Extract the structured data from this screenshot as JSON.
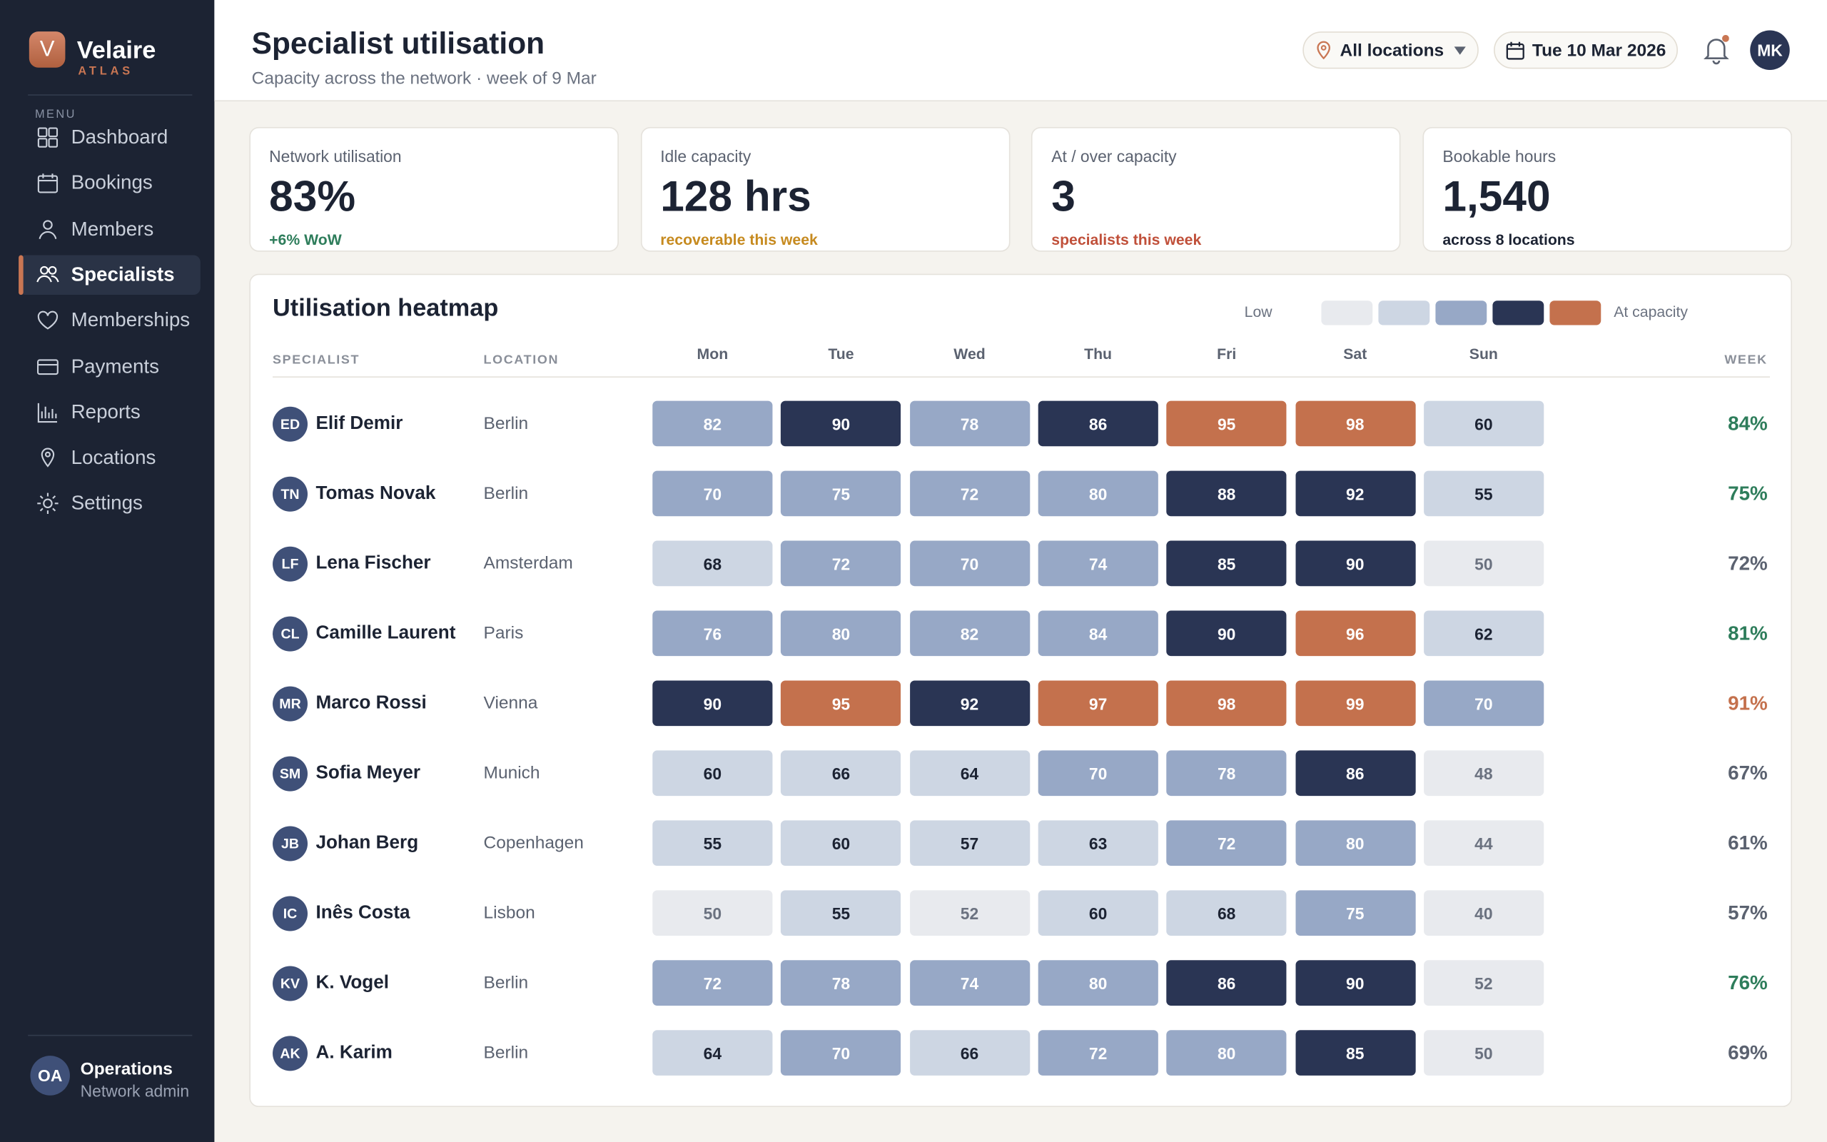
{
  "brand": {
    "initial": "V",
    "name": "Velaire",
    "sub": "ATLAS"
  },
  "nav": {
    "heading": "MENU",
    "items": [
      "Dashboard",
      "Bookings",
      "Members",
      "Specialists",
      "Memberships",
      "Payments",
      "Reports",
      "Locations",
      "Settings"
    ]
  },
  "user": {
    "initials": "OA",
    "name": "Operations",
    "role": "Network admin"
  },
  "header": {
    "title": "Specialist utilisation",
    "subtitle": "Capacity across the network · week of 9 Mar",
    "location": "All locations",
    "date": "Tue 10 Mar 2026",
    "avatar": "MK"
  },
  "kpis": [
    {
      "label": "Network utilisation",
      "value": "83%",
      "note": "+6% WoW"
    },
    {
      "label": "Idle capacity",
      "value": "128 hrs",
      "note": "recoverable this week"
    },
    {
      "label": "At / over capacity",
      "value": "3",
      "note": "specialists this week"
    },
    {
      "label": "Bookable hours",
      "value": "1,540",
      "note": "across 8 locations"
    }
  ],
  "heatmap": {
    "title": "Utilisation heatmap",
    "legend": {
      "low": "Low",
      "high": "At capacity"
    },
    "columns": {
      "specialist": "SPECIALIST",
      "location": "LOCATION",
      "days": [
        "Mon",
        "Tue",
        "Wed",
        "Thu",
        "Fri",
        "Sat",
        "Sun"
      ],
      "week": "WEEK"
    },
    "rows": [
      {
        "initials": "ED",
        "name": "Elif Demir",
        "location": "Berlin",
        "values": [
          82,
          90,
          78,
          86,
          95,
          98,
          60
        ],
        "week": "84%"
      },
      {
        "initials": "TN",
        "name": "Tomas Novak",
        "location": "Berlin",
        "values": [
          70,
          75,
          72,
          80,
          88,
          92,
          55
        ],
        "week": "75%"
      },
      {
        "initials": "LF",
        "name": "Lena Fischer",
        "location": "Amsterdam",
        "values": [
          68,
          72,
          70,
          74,
          85,
          90,
          50
        ],
        "week": "72%"
      },
      {
        "initials": "CL",
        "name": "Camille Laurent",
        "location": "Paris",
        "values": [
          76,
          80,
          82,
          84,
          90,
          96,
          62
        ],
        "week": "81%"
      },
      {
        "initials": "MR",
        "name": "Marco Rossi",
        "location": "Vienna",
        "values": [
          90,
          95,
          92,
          97,
          98,
          99,
          70
        ],
        "week": "91%"
      },
      {
        "initials": "SM",
        "name": "Sofia Meyer",
        "location": "Munich",
        "values": [
          60,
          66,
          64,
          70,
          78,
          86,
          48
        ],
        "week": "67%"
      },
      {
        "initials": "JB",
        "name": "Johan Berg",
        "location": "Copenhagen",
        "values": [
          55,
          60,
          57,
          63,
          72,
          80,
          44
        ],
        "week": "61%"
      },
      {
        "initials": "IC",
        "name": "Inês Costa",
        "location": "Lisbon",
        "values": [
          50,
          55,
          52,
          60,
          68,
          75,
          40
        ],
        "week": "57%"
      },
      {
        "initials": "KV",
        "name": "K. Vogel",
        "location": "Berlin",
        "values": [
          72,
          78,
          74,
          80,
          86,
          90,
          52
        ],
        "week": "76%"
      },
      {
        "initials": "AK",
        "name": "A. Karim",
        "location": "Berlin",
        "values": [
          64,
          70,
          66,
          72,
          80,
          85,
          50
        ],
        "week": "69%"
      }
    ]
  }
}
